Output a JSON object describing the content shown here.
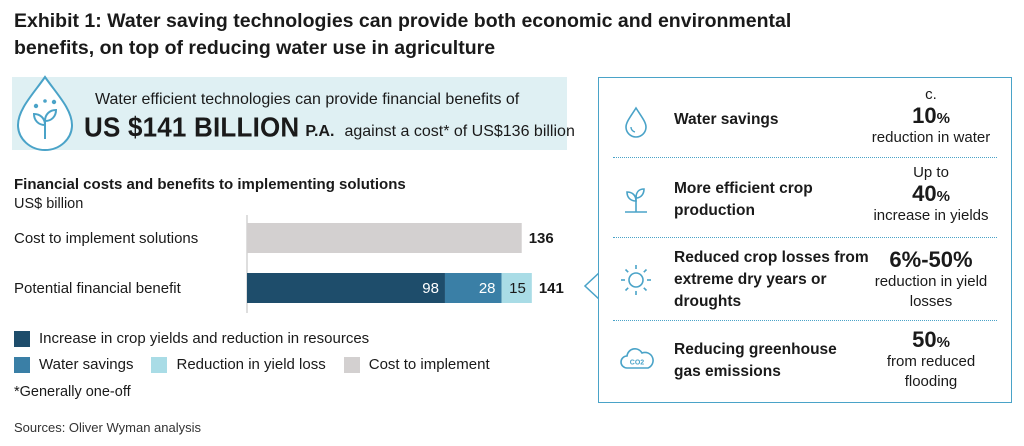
{
  "title": "Exhibit 1: Water saving technologies can provide both economic and environmental benefits, on top of reducing water use in agriculture",
  "banner": {
    "line1": "Water efficient technologies can provide financial benefits of",
    "amount": "US $141 BILLION",
    "pa": "P.A.",
    "cost": "against a cost* of US$136 billion",
    "icon": "water-drop-plant-icon"
  },
  "chart_data": {
    "type": "bar",
    "orientation": "horizontal",
    "stacked": true,
    "title": "Financial costs and benefits to implementing solutions",
    "unit": "US$ billion",
    "categories": [
      "Cost to implement solutions",
      "Potential financial benefit"
    ],
    "series": [
      {
        "name": "Increase in crop yields and reduction in resources",
        "color": "#1e4d6b",
        "values": [
          0,
          98
        ]
      },
      {
        "name": "Water savings",
        "color": "#3a7fa6",
        "values": [
          0,
          28
        ]
      },
      {
        "name": "Reduction in yield loss",
        "color": "#a9dce6",
        "values": [
          0,
          15
        ]
      },
      {
        "name": "Cost to implement",
        "color": "#d3d0d0",
        "values": [
          136,
          0
        ]
      }
    ],
    "totals": [
      136,
      141
    ]
  },
  "legend_rows": [
    [
      "Increase in crop yields and reduction in resources"
    ],
    [
      "Water savings",
      "Reduction in yield loss",
      "Cost to implement"
    ]
  ],
  "footnote": "*Generally one-off",
  "sources": "Sources: Oliver Wyman analysis",
  "benefits": [
    {
      "icon": "water-drop-icon",
      "label": "Water savings",
      "pre": "c.",
      "big": "10",
      "pct": "%",
      "post": "reduction in water"
    },
    {
      "icon": "sprout-icon",
      "label": "More efficient crop production",
      "pre": "Up to",
      "big": "40",
      "pct": "%",
      "post": "increase in yields"
    },
    {
      "icon": "sun-icon",
      "label": "Reduced crop losses from extreme dry years or droughts",
      "pre": "",
      "big": "6%-50%",
      "pct": "",
      "post": "reduction in yield losses"
    },
    {
      "icon": "co2-cloud-icon",
      "label": "Reducing greenhouse gas emissions",
      "pre": "",
      "big": "50",
      "pct": "%",
      "post": "from reduced flooding"
    }
  ],
  "colors": {
    "accent": "#4aa3c8",
    "banner_bg": "#dff0f3"
  }
}
